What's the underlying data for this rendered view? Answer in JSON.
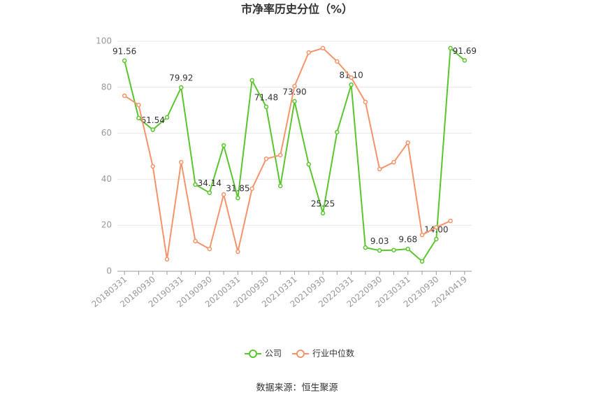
{
  "chart_data": {
    "type": "line",
    "title": "市净率历史分位（%）",
    "categories": [
      "20180331",
      null,
      "20180930",
      null,
      "20190331",
      null,
      "20190930",
      null,
      "20200331",
      null,
      "20200930",
      null,
      "20210331",
      null,
      "20210930",
      null,
      "20220331",
      null,
      "20220930",
      null,
      "20230331",
      null,
      "20230930",
      null,
      "20240419"
    ],
    "series": [
      {
        "name": "公司",
        "color": "#5ac52e",
        "values": [
          91.56,
          66.6,
          61.54,
          66.9,
          79.92,
          37.7,
          34.14,
          54.7,
          31.85,
          83.0,
          71.48,
          37.1,
          73.9,
          46.5,
          25.25,
          60.5,
          81.1,
          10.3,
          9.03,
          9.2,
          9.68,
          4.3,
          14.0,
          97.0,
          91.69
        ],
        "value_labels": [
          "91.56",
          null,
          "61.54",
          null,
          "79.92",
          null,
          "34.14",
          null,
          "31.85",
          null,
          "71.48",
          null,
          "73.90",
          null,
          "25.25",
          null,
          "81.10",
          null,
          "9.03",
          null,
          "9.68",
          null,
          "14.00",
          null,
          "91.69"
        ]
      },
      {
        "name": "行业中位数",
        "color": "#f5946a",
        "values": [
          76.3,
          72.3,
          45.6,
          5.2,
          47.4,
          13.1,
          9.7,
          33.4,
          8.5,
          35.9,
          48.9,
          50.5,
          80.5,
          95.1,
          97.0,
          91.2,
          84.2,
          73.6,
          44.4,
          47.4,
          55.9,
          15.8,
          19.1,
          21.9,
          null
        ]
      }
    ],
    "ylim": [
      0,
      100
    ],
    "yticks": [
      0,
      20,
      40,
      60,
      80,
      100
    ],
    "grid": true,
    "legend": "bottom",
    "source": "数据来源：恒生聚源"
  }
}
